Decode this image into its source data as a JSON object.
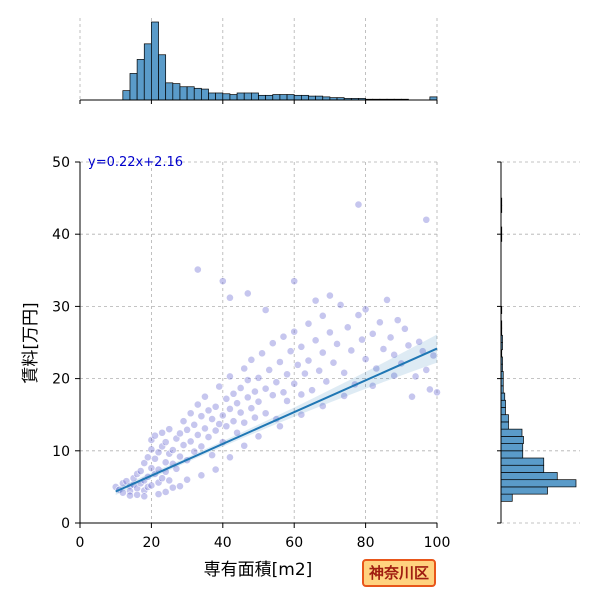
{
  "chart_data": {
    "type": "scatter",
    "title": "",
    "xlabel": "専有面積[m2]",
    "ylabel": "賃料[万円]",
    "xlim": [
      0,
      100
    ],
    "ylim": [
      0,
      50
    ],
    "xticks": [
      0,
      20,
      40,
      60,
      80,
      100
    ],
    "yticks": [
      0,
      10,
      20,
      30,
      40,
      50
    ],
    "grid": true,
    "equation": "y=0.22x+2.16",
    "regression": {
      "slope": 0.22,
      "intercept": 2.16,
      "x_range": [
        10,
        100
      ]
    },
    "badge": "神奈川区",
    "points": [
      [
        10,
        5
      ],
      [
        11,
        4.6
      ],
      [
        12,
        5.5
      ],
      [
        12,
        4.2
      ],
      [
        13,
        5.8
      ],
      [
        14,
        5.1
      ],
      [
        14,
        4.4
      ],
      [
        15,
        6.2
      ],
      [
        15,
        5.3
      ],
      [
        16,
        4.8
      ],
      [
        16,
        6.8
      ],
      [
        17,
        5.5
      ],
      [
        17,
        7.2
      ],
      [
        18,
        5.9
      ],
      [
        18,
        4.5
      ],
      [
        18,
        8.3
      ],
      [
        19,
        6.4
      ],
      [
        19,
        5.0
      ],
      [
        19,
        9.1
      ],
      [
        20,
        7.6
      ],
      [
        20,
        5.2
      ],
      [
        20,
        10.2
      ],
      [
        20,
        11.5
      ],
      [
        21,
        6.8
      ],
      [
        21,
        8.9
      ],
      [
        21,
        12.1
      ],
      [
        22,
        7.4
      ],
      [
        22,
        5.6
      ],
      [
        22,
        9.8
      ],
      [
        23,
        10.6
      ],
      [
        23,
        6.2
      ],
      [
        23,
        12.5
      ],
      [
        24,
        8.4
      ],
      [
        24,
        11.2
      ],
      [
        24,
        7.1
      ],
      [
        25,
        9.6
      ],
      [
        25,
        13.0
      ],
      [
        25,
        5.9
      ],
      [
        26,
        10.1
      ],
      [
        26,
        8.2
      ],
      [
        27,
        11.7
      ],
      [
        27,
        7.5
      ],
      [
        28,
        12.4
      ],
      [
        28,
        9.2
      ],
      [
        29,
        10.8
      ],
      [
        29,
        14.1
      ],
      [
        30,
        8.7
      ],
      [
        30,
        12.9
      ],
      [
        31,
        11.3
      ],
      [
        31,
        15.2
      ],
      [
        32,
        9.9
      ],
      [
        32,
        13.6
      ],
      [
        33,
        12.2
      ],
      [
        33,
        16.4
      ],
      [
        34,
        10.6
      ],
      [
        34,
        14.8
      ],
      [
        35,
        13.1
      ],
      [
        35,
        17.5
      ],
      [
        36,
        11.9
      ],
      [
        36,
        15.6
      ],
      [
        37,
        14.4
      ],
      [
        37,
        9.4
      ],
      [
        38,
        16.1
      ],
      [
        38,
        12.8
      ],
      [
        39,
        13.7
      ],
      [
        39,
        18.9
      ],
      [
        40,
        14.9
      ],
      [
        40,
        11.2
      ],
      [
        41,
        17.2
      ],
      [
        41,
        13.4
      ],
      [
        42,
        15.8
      ],
      [
        42,
        20.3
      ],
      [
        43,
        14.1
      ],
      [
        43,
        17.9
      ],
      [
        44,
        16.6
      ],
      [
        44,
        12.5
      ],
      [
        45,
        18.7
      ],
      [
        45,
        15.3
      ],
      [
        46,
        21.4
      ],
      [
        46,
        13.9
      ],
      [
        47,
        17.4
      ],
      [
        47,
        19.8
      ],
      [
        48,
        15.9
      ],
      [
        48,
        22.6
      ],
      [
        49,
        18.2
      ],
      [
        49,
        14.6
      ],
      [
        50,
        20.1
      ],
      [
        50,
        16.8
      ],
      [
        51,
        23.5
      ],
      [
        52,
        18.6
      ],
      [
        52,
        15.2
      ],
      [
        53,
        21.2
      ],
      [
        54,
        17.7
      ],
      [
        54,
        24.9
      ],
      [
        55,
        19.5
      ],
      [
        55,
        14.4
      ],
      [
        56,
        22.3
      ],
      [
        57,
        18.1
      ],
      [
        57,
        25.8
      ],
      [
        58,
        20.6
      ],
      [
        58,
        16.9
      ],
      [
        59,
        23.8
      ],
      [
        60,
        19.3
      ],
      [
        60,
        26.5
      ],
      [
        61,
        21.9
      ],
      [
        62,
        17.8
      ],
      [
        62,
        24.4
      ],
      [
        63,
        20.7
      ],
      [
        64,
        27.6
      ],
      [
        64,
        22.5
      ],
      [
        65,
        18.4
      ],
      [
        66,
        25.3
      ],
      [
        67,
        21.1
      ],
      [
        68,
        28.7
      ],
      [
        68,
        23.6
      ],
      [
        69,
        19.6
      ],
      [
        70,
        26.4
      ],
      [
        71,
        22.2
      ],
      [
        72,
        24.8
      ],
      [
        73,
        30.2
      ],
      [
        74,
        20.8
      ],
      [
        75,
        27.1
      ],
      [
        76,
        23.9
      ],
      [
        77,
        19.2
      ],
      [
        78,
        28.8
      ],
      [
        79,
        25.4
      ],
      [
        80,
        22.7
      ],
      [
        80,
        29.6
      ],
      [
        82,
        26.2
      ],
      [
        83,
        21.4
      ],
      [
        84,
        27.8
      ],
      [
        85,
        24.1
      ],
      [
        86,
        30.9
      ],
      [
        87,
        25.7
      ],
      [
        88,
        23.3
      ],
      [
        89,
        28.1
      ],
      [
        90,
        22.1
      ],
      [
        91,
        26.9
      ],
      [
        92,
        24.6
      ],
      [
        94,
        20.3
      ],
      [
        95,
        25.1
      ],
      [
        96,
        23.8
      ],
      [
        97,
        21.2
      ],
      [
        98,
        18.5
      ],
      [
        99,
        23.2
      ],
      [
        100,
        18.1
      ],
      [
        33,
        35.1
      ],
      [
        40,
        33.5
      ],
      [
        42,
        31.2
      ],
      [
        47,
        31.8
      ],
      [
        52,
        29.5
      ],
      [
        60,
        33.5
      ],
      [
        66,
        30.8
      ],
      [
        70,
        31.5
      ],
      [
        78,
        44.1
      ],
      [
        97,
        42.0
      ],
      [
        14,
        3.8
      ],
      [
        16,
        3.9
      ],
      [
        18,
        3.7
      ],
      [
        22,
        4.0
      ],
      [
        24,
        4.3
      ],
      [
        26,
        4.9
      ],
      [
        28,
        5.1
      ],
      [
        30,
        6.0
      ],
      [
        34,
        6.6
      ],
      [
        38,
        7.4
      ],
      [
        42,
        9.1
      ],
      [
        46,
        10.7
      ],
      [
        50,
        12.0
      ],
      [
        56,
        13.4
      ],
      [
        62,
        15.0
      ],
      [
        68,
        16.2
      ],
      [
        74,
        17.6
      ],
      [
        82,
        19.0
      ],
      [
        88,
        20.4
      ],
      [
        93,
        17.5
      ]
    ],
    "top_histogram": {
      "bin_edges": [
        0,
        2,
        4,
        6,
        8,
        10,
        12,
        14,
        16,
        18,
        20,
        22,
        24,
        26,
        28,
        30,
        32,
        34,
        36,
        38,
        40,
        42,
        44,
        46,
        48,
        50,
        52,
        54,
        56,
        58,
        60,
        62,
        64,
        66,
        68,
        70,
        72,
        74,
        76,
        78,
        80,
        82,
        84,
        86,
        88,
        90,
        92,
        94,
        96,
        98,
        100
      ],
      "counts": [
        0,
        0,
        0,
        0,
        0,
        0,
        12,
        34,
        52,
        72,
        100,
        58,
        22,
        21,
        17,
        17,
        15,
        14,
        9,
        9,
        8,
        7,
        9,
        9,
        9,
        6,
        6,
        7,
        7,
        7,
        6,
        6,
        5,
        5,
        4,
        3,
        3,
        2,
        2,
        2,
        1,
        1,
        1,
        1,
        1,
        1,
        0,
        0,
        0,
        4
      ]
    },
    "right_histogram": {
      "bin_edges": [
        0,
        1,
        2,
        3,
        4,
        5,
        6,
        7,
        8,
        9,
        10,
        11,
        12,
        13,
        14,
        15,
        16,
        17,
        18,
        19,
        20,
        21,
        22,
        23,
        24,
        25,
        26,
        27,
        28,
        29,
        30,
        31,
        32,
        33,
        34,
        35,
        36,
        37,
        38,
        39,
        40,
        41,
        42,
        43,
        44,
        45,
        46,
        47,
        48,
        49,
        50
      ],
      "counts": [
        0,
        0,
        0,
        15,
        62,
        100,
        75,
        57,
        57,
        29,
        29,
        30,
        28,
        10,
        10,
        6,
        6,
        5,
        3,
        3,
        3,
        2,
        2,
        1,
        2,
        2,
        1,
        1,
        0,
        1,
        0,
        0,
        0,
        0,
        0,
        0,
        0,
        0,
        0,
        1,
        1,
        0,
        0,
        1,
        1,
        0,
        0,
        0,
        0,
        0
      ]
    }
  }
}
